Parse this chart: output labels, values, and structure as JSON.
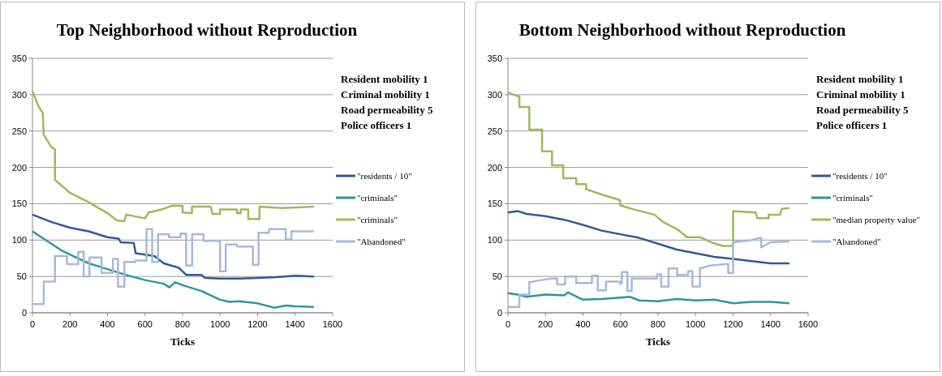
{
  "chart_data": [
    {
      "type": "line",
      "title": "Top Neighborhood  without Reproduction",
      "xlabel": "Ticks",
      "xlim": [
        0,
        1600
      ],
      "xticks": [
        0,
        200,
        400,
        600,
        800,
        1000,
        1200,
        1400,
        1600
      ],
      "ylim": [
        0,
        350
      ],
      "yticks": [
        0,
        50,
        100,
        150,
        200,
        250,
        300,
        350
      ],
      "grid": "y",
      "legend": "right",
      "annotations": [
        "Resident mobility 1",
        "Criminal mobility 1",
        "Road permeability 5",
        "Police officers 1"
      ],
      "series": [
        {
          "name": "\"residents / 10\"",
          "color": "#2f5b95",
          "x": [
            0,
            100,
            200,
            300,
            400,
            460,
            470,
            540,
            550,
            650,
            700,
            740,
            780,
            820,
            900,
            920,
            1000,
            1100,
            1200,
            1300,
            1400,
            1500
          ],
          "values": [
            135,
            125,
            117,
            112,
            104,
            102,
            97,
            96,
            82,
            78,
            68,
            65,
            62,
            52,
            52,
            48,
            47,
            47,
            48,
            49,
            51,
            50
          ]
        },
        {
          "name": "\"criminals\"",
          "color": "#2f95a0",
          "x": [
            0,
            100,
            160,
            200,
            300,
            400,
            500,
            600,
            700,
            730,
            760,
            800,
            900,
            1000,
            1050,
            1100,
            1200,
            1290,
            1350,
            1400,
            1500
          ],
          "values": [
            112,
            95,
            85,
            80,
            68,
            60,
            52,
            45,
            40,
            35,
            42,
            38,
            30,
            18,
            15,
            16,
            13,
            7,
            10,
            9,
            8
          ]
        },
        {
          "name": "\"criminals\"",
          "color": "#9bbb59",
          "x": [
            0,
            30,
            55,
            60,
            100,
            120,
            120,
            200,
            300,
            400,
            450,
            490,
            500,
            600,
            620,
            700,
            740,
            800,
            800,
            850,
            850,
            950,
            960,
            1000,
            1000,
            1090,
            1090,
            1110,
            1110,
            1150,
            1150,
            1210,
            1210,
            1330,
            1500
          ],
          "values": [
            305,
            285,
            275,
            245,
            228,
            225,
            183,
            165,
            152,
            137,
            127,
            126,
            135,
            130,
            138,
            143,
            147,
            147,
            138,
            137,
            146,
            146,
            136,
            136,
            142,
            142,
            137,
            137,
            142,
            142,
            129,
            129,
            146,
            144,
            146
          ]
        },
        {
          "name": "\"Abandoned\"",
          "color": "#a7b9d9",
          "x": [
            0,
            60,
            60,
            120,
            120,
            184,
            184,
            244,
            244,
            273,
            273,
            304,
            304,
            368,
            368,
            429,
            429,
            456,
            456,
            490,
            490,
            549,
            549,
            608,
            608,
            638,
            638,
            669,
            669,
            727,
            727,
            789,
            789,
            819,
            819,
            851,
            851,
            912,
            912,
            1000,
            1000,
            1030,
            1030,
            1090,
            1090,
            1175,
            1175,
            1205,
            1205,
            1260,
            1260,
            1350,
            1350,
            1380,
            1380,
            1500
          ],
          "values": [
            12,
            12,
            43,
            43,
            78,
            78,
            67,
            67,
            84,
            84,
            50,
            50,
            76,
            76,
            55,
            55,
            74,
            74,
            36,
            36,
            70,
            70,
            72,
            72,
            115,
            115,
            70,
            70,
            108,
            108,
            104,
            104,
            109,
            109,
            65,
            65,
            108,
            108,
            99,
            99,
            57,
            57,
            94,
            94,
            91,
            91,
            66,
            66,
            110,
            110,
            115,
            115,
            101,
            101,
            112,
            112
          ]
        }
      ]
    },
    {
      "type": "line",
      "title": "Bottom Neighborhood  without Reproduction",
      "xlabel": "Ticks",
      "xlim": [
        0,
        1600
      ],
      "xticks": [
        0,
        200,
        400,
        600,
        800,
        1000,
        1200,
        1400,
        1600
      ],
      "ylim": [
        0,
        350
      ],
      "yticks": [
        0,
        50,
        100,
        150,
        200,
        250,
        300,
        350
      ],
      "grid": "y",
      "legend": "right",
      "annotations": [
        "Resident mobility 1",
        "Criminal mobility 1",
        "Road permeability 5",
        "Police officers 1"
      ],
      "series": [
        {
          "name": "\"residents / 10\"",
          "color": "#2f5b95",
          "x": [
            0,
            50,
            100,
            200,
            300,
            400,
            500,
            600,
            700,
            800,
            900,
            1000,
            1100,
            1200,
            1300,
            1400,
            1500
          ],
          "values": [
            138,
            140,
            136,
            133,
            128,
            121,
            113,
            108,
            103,
            95,
            87,
            82,
            77,
            74,
            71,
            68,
            68
          ]
        },
        {
          "name": "\"criminals\"",
          "color": "#2f95a0",
          "x": [
            0,
            50,
            100,
            200,
            300,
            320,
            400,
            500,
            600,
            650,
            700,
            800,
            900,
            1000,
            1100,
            1200,
            1300,
            1400,
            1500
          ],
          "values": [
            27,
            25,
            22,
            25,
            24,
            28,
            18,
            19,
            21,
            22,
            17,
            16,
            19,
            17,
            18,
            13,
            15,
            15,
            13
          ]
        },
        {
          "name": "\"median property value\"",
          "color": "#9bbb59",
          "x": [
            0,
            50,
            61,
            61,
            114,
            114,
            182,
            182,
            235,
            235,
            295,
            295,
            364,
            364,
            417,
            417,
            508,
            598,
            598,
            674,
            780,
            826,
            902,
            955,
            1023,
            1083,
            1144,
            1200,
            1200,
            1320,
            1330,
            1390,
            1390,
            1450,
            1460,
            1500
          ],
          "values": [
            303,
            298,
            298,
            283,
            283,
            252,
            252,
            222,
            222,
            203,
            203,
            185,
            185,
            177,
            177,
            170,
            162,
            155,
            148,
            142,
            135,
            125,
            115,
            104,
            104,
            97,
            92,
            92,
            140,
            138,
            130,
            130,
            135,
            135,
            143,
            144
          ]
        },
        {
          "name": "\"Abandoned\"",
          "color": "#a7b9d9",
          "x": [
            0,
            61,
            61,
            114,
            114,
            177,
            235,
            262,
            262,
            305,
            305,
            364,
            364,
            448,
            448,
            479,
            479,
            523,
            523,
            598,
            598,
            607,
            607,
            637,
            637,
            660,
            660,
            794,
            794,
            817,
            817,
            856,
            856,
            902,
            902,
            960,
            960,
            983,
            983,
            1023,
            1023,
            1076,
            1159,
            1174,
            1174,
            1200,
            1200,
            1300,
            1340,
            1350,
            1350,
            1400,
            1500
          ],
          "values": [
            8,
            8,
            25,
            25,
            42,
            45,
            47,
            47,
            39,
            39,
            50,
            50,
            41,
            41,
            51,
            51,
            31,
            31,
            43,
            43,
            40,
            40,
            56,
            56,
            30,
            30,
            47,
            47,
            53,
            53,
            36,
            36,
            61,
            61,
            52,
            52,
            57,
            57,
            36,
            36,
            61,
            65,
            67,
            67,
            55,
            55,
            97,
            100,
            103,
            103,
            90,
            97,
            98
          ]
        }
      ]
    }
  ]
}
